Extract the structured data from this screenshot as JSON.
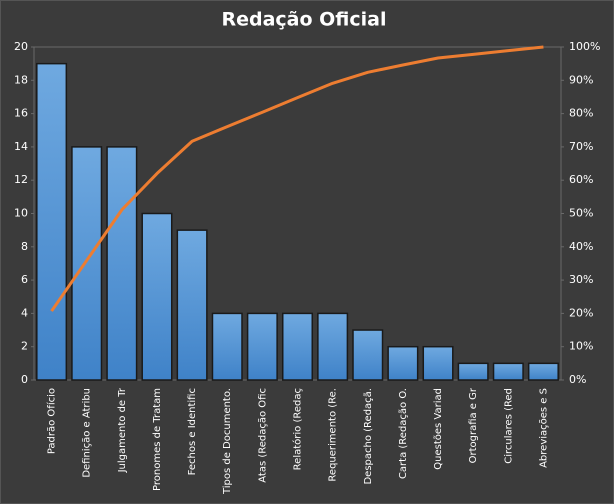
{
  "chart_data": {
    "type": "pareto",
    "title": "Redação  Oficial",
    "categories": [
      "Padrão Ofício",
      "Definição e Atribu",
      "Julgamento de Tr",
      "Pronomes de Tratam",
      "Fechos e Identific",
      "Tipos de Documento.",
      "Atas (Redação Ofic",
      "Relatório (Redaç",
      "Requerimento (Re.",
      "Despacho (Redaçã.",
      "Carta (Redação O.",
      "Questões Variad",
      "Ortografia e Gr",
      "Circulares (Red",
      "Abreviações e S"
    ],
    "series": [
      {
        "type": "bar",
        "color": "#5b9bd5",
        "values": [
          19,
          14,
          14,
          10,
          9,
          4,
          4,
          4,
          4,
          3,
          2,
          2,
          1,
          1,
          1
        ]
      },
      {
        "type": "line",
        "axis": "y2",
        "color": "#ed7d31",
        "values": [
          20.7,
          35.9,
          51.1,
          62.0,
          71.7,
          76.1,
          80.4,
          84.8,
          89.1,
          92.4,
          94.6,
          96.7,
          97.8,
          98.9,
          100
        ]
      }
    ],
    "ylim": [
      0,
      20
    ],
    "yticks": [
      0,
      2,
      4,
      6,
      8,
      10,
      12,
      14,
      16,
      18,
      20
    ],
    "y2lim": [
      0,
      100
    ],
    "y2ticks": [
      {
        "value": 0,
        "label": "0%"
      },
      {
        "value": 10,
        "label": "10%"
      },
      {
        "value": 20,
        "label": "20%"
      },
      {
        "value": 30,
        "label": "30%"
      },
      {
        "value": 40,
        "label": "40%"
      },
      {
        "value": 50,
        "label": "50%"
      },
      {
        "value": 60,
        "label": "60%"
      },
      {
        "value": 70,
        "label": "70%"
      },
      {
        "value": 80,
        "label": "80%"
      },
      {
        "value": 90,
        "label": "90%"
      },
      {
        "value": 100,
        "label": "100%"
      }
    ],
    "grid": false
  }
}
